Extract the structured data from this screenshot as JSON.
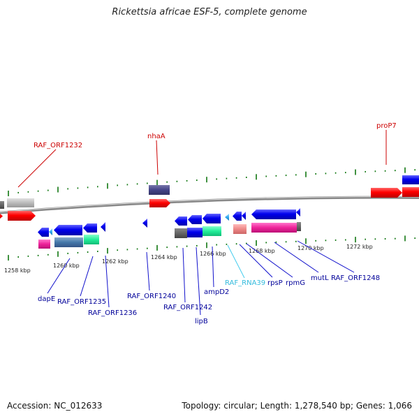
{
  "title": "Rickettsia africae ESF-5, complete genome",
  "footer": {
    "accession_label": "Accession:",
    "accession": "NC_012633",
    "topology_label": "Topology:",
    "topology": "circular",
    "length_label": "Length:",
    "length": "1,278,540 bp",
    "genes_label": "Genes:",
    "genes": "1,066"
  },
  "colors": {
    "label_top": "#cc0000",
    "label_bottom": "#000099",
    "label_rna": "#33bbdd",
    "leader_top": "#cc0000",
    "leader_bottom": "#1111cc",
    "leader_rna": "#44ccee",
    "backbone": "#888888",
    "tick": "#117711"
  },
  "scale_labels": [
    "1258 kbp",
    "1260 kbp",
    "1262 kbp",
    "1264 kbp",
    "1266 kbp",
    "1268 kbp",
    "1270 kbp",
    "1272 kbp"
  ],
  "top_labels": [
    "RAF_ORF1232",
    "nhaA",
    "proP7"
  ],
  "bottom_labels": [
    "dapE",
    "RAF_ORF1235",
    "RAF_ORF1236",
    "RAF_ORF1240",
    "RAF_ORF1242",
    "lipB",
    "ampD2",
    "RAF_RNA39",
    "rpsP",
    "rpmG",
    "mutL",
    "RAF_ORF1248"
  ]
}
